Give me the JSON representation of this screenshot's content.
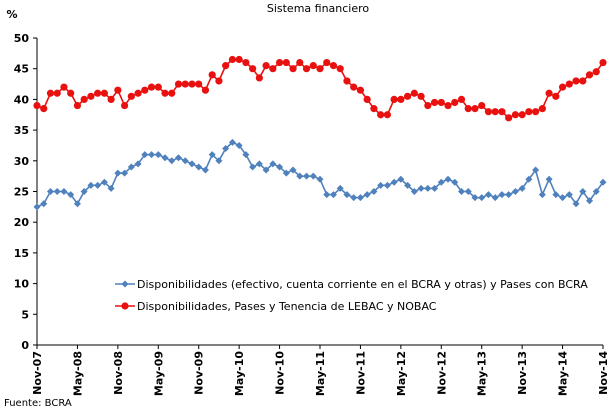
{
  "chart_data": {
    "type": "line",
    "title": "Sistema financiero",
    "ylabel": "%",
    "source": "Fuente: BCRA",
    "categories": [
      "Nov-07",
      null,
      null,
      null,
      null,
      null,
      "May-08",
      null,
      null,
      null,
      null,
      null,
      "Nov-08",
      null,
      null,
      null,
      null,
      null,
      "May-09",
      null,
      null,
      null,
      null,
      null,
      "Nov-09",
      null,
      null,
      null,
      null,
      null,
      "May-10",
      null,
      null,
      null,
      null,
      null,
      "Nov-10",
      null,
      null,
      null,
      null,
      null,
      "May-11",
      null,
      null,
      null,
      null,
      null,
      "Nov-11",
      null,
      null,
      null,
      null,
      null,
      "May-12",
      null,
      null,
      null,
      null,
      null,
      "Nov-12",
      null,
      null,
      null,
      null,
      null,
      "May-13",
      null,
      null,
      null,
      null,
      null,
      "Nov-13",
      null,
      null,
      null,
      null,
      null,
      "May-14",
      null,
      null,
      null,
      null,
      null,
      "Nov-14"
    ],
    "series": [
      {
        "name": "Disponibilidades (efectivo, cuenta corriente en el BCRA y otras) y  Pases con BCRA",
        "color": "#4f81bd",
        "marker": "diamond",
        "values": [
          22.5,
          23,
          25,
          25,
          25,
          24.5,
          23,
          25,
          26,
          26,
          26.5,
          25.5,
          28,
          28,
          29,
          29.5,
          31,
          31,
          31,
          30.5,
          30,
          30.5,
          30,
          29.5,
          29,
          28.5,
          31,
          30,
          32,
          33,
          32.5,
          31,
          29,
          29.5,
          28.5,
          29.5,
          29,
          28,
          28.5,
          27.5,
          27.5,
          27.5,
          27,
          24.5,
          24.5,
          25.5,
          24.5,
          24,
          24,
          24.5,
          25,
          26,
          26,
          26.5,
          27,
          26,
          25,
          25.5,
          25.5,
          25.5,
          26.5,
          27,
          26.5,
          25,
          25,
          24,
          24,
          24.5,
          24,
          24.5,
          24.5,
          25,
          25.5,
          27,
          28.5,
          24.5,
          27,
          24.5,
          24,
          24.5,
          23,
          25,
          23.5,
          25,
          26.5
        ]
      },
      {
        "name": "Disponibilidades, Pases y Tenencia de LEBAC y NOBAC",
        "color": "#e8110f",
        "marker": "circle",
        "values": [
          39,
          38.5,
          41,
          41,
          42,
          41,
          39,
          40,
          40.5,
          41,
          41,
          40,
          41.5,
          39,
          40.5,
          41,
          41.5,
          42,
          42,
          41,
          41,
          42.5,
          42.5,
          42.5,
          42.5,
          41.5,
          44,
          43,
          45.5,
          46.5,
          46.5,
          46,
          45,
          43.5,
          45.5,
          45,
          46,
          46,
          45,
          46,
          45,
          45.5,
          45,
          46,
          45.5,
          45,
          43,
          42,
          41.5,
          40,
          38.5,
          37.5,
          37.5,
          40,
          40,
          40.5,
          41,
          40.5,
          39,
          39.5,
          39.5,
          39,
          39.5,
          40,
          38.5,
          38.5,
          39,
          38,
          38,
          38,
          37,
          37.5,
          37.5,
          38,
          38,
          38.5,
          41,
          40.5,
          42,
          42.5,
          43,
          43,
          44,
          44.5,
          46
        ]
      }
    ],
    "ylim": [
      0,
      50
    ],
    "yticks": [
      0,
      5,
      10,
      15,
      20,
      25,
      30,
      35,
      40,
      45,
      50
    ],
    "grid": false,
    "legend": "center"
  }
}
